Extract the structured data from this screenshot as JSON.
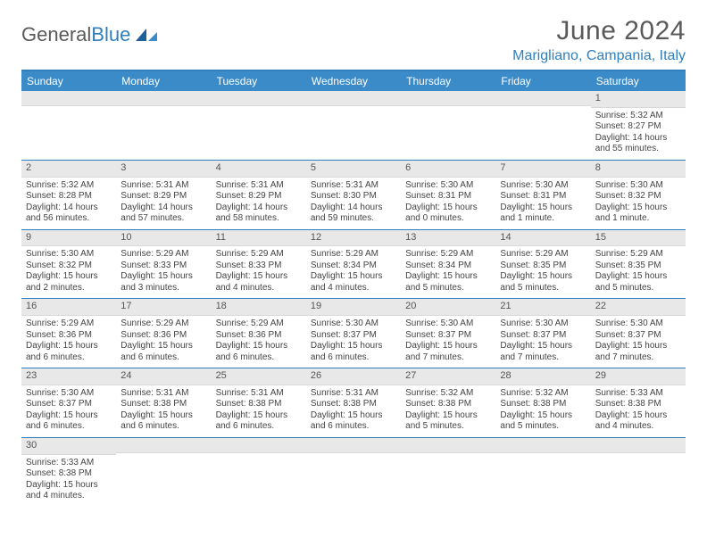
{
  "logo": {
    "text1": "General",
    "text2": "Blue"
  },
  "header": {
    "title": "June 2024",
    "location": "Marigliano, Campania, Italy"
  },
  "colors": {
    "accent": "#2f7fbf",
    "header_bg": "#3b8bc9",
    "daynum_bg": "#e8e8e8",
    "text": "#444444"
  },
  "day_labels": [
    "Sunday",
    "Monday",
    "Tuesday",
    "Wednesday",
    "Thursday",
    "Friday",
    "Saturday"
  ],
  "weeks": [
    [
      null,
      null,
      null,
      null,
      null,
      null,
      {
        "n": "1",
        "sunrise": "Sunrise: 5:32 AM",
        "sunset": "Sunset: 8:27 PM",
        "daylight": "Daylight: 14 hours and 55 minutes."
      }
    ],
    [
      {
        "n": "2",
        "sunrise": "Sunrise: 5:32 AM",
        "sunset": "Sunset: 8:28 PM",
        "daylight": "Daylight: 14 hours and 56 minutes."
      },
      {
        "n": "3",
        "sunrise": "Sunrise: 5:31 AM",
        "sunset": "Sunset: 8:29 PM",
        "daylight": "Daylight: 14 hours and 57 minutes."
      },
      {
        "n": "4",
        "sunrise": "Sunrise: 5:31 AM",
        "sunset": "Sunset: 8:29 PM",
        "daylight": "Daylight: 14 hours and 58 minutes."
      },
      {
        "n": "5",
        "sunrise": "Sunrise: 5:31 AM",
        "sunset": "Sunset: 8:30 PM",
        "daylight": "Daylight: 14 hours and 59 minutes."
      },
      {
        "n": "6",
        "sunrise": "Sunrise: 5:30 AM",
        "sunset": "Sunset: 8:31 PM",
        "daylight": "Daylight: 15 hours and 0 minutes."
      },
      {
        "n": "7",
        "sunrise": "Sunrise: 5:30 AM",
        "sunset": "Sunset: 8:31 PM",
        "daylight": "Daylight: 15 hours and 1 minute."
      },
      {
        "n": "8",
        "sunrise": "Sunrise: 5:30 AM",
        "sunset": "Sunset: 8:32 PM",
        "daylight": "Daylight: 15 hours and 1 minute."
      }
    ],
    [
      {
        "n": "9",
        "sunrise": "Sunrise: 5:30 AM",
        "sunset": "Sunset: 8:32 PM",
        "daylight": "Daylight: 15 hours and 2 minutes."
      },
      {
        "n": "10",
        "sunrise": "Sunrise: 5:29 AM",
        "sunset": "Sunset: 8:33 PM",
        "daylight": "Daylight: 15 hours and 3 minutes."
      },
      {
        "n": "11",
        "sunrise": "Sunrise: 5:29 AM",
        "sunset": "Sunset: 8:33 PM",
        "daylight": "Daylight: 15 hours and 4 minutes."
      },
      {
        "n": "12",
        "sunrise": "Sunrise: 5:29 AM",
        "sunset": "Sunset: 8:34 PM",
        "daylight": "Daylight: 15 hours and 4 minutes."
      },
      {
        "n": "13",
        "sunrise": "Sunrise: 5:29 AM",
        "sunset": "Sunset: 8:34 PM",
        "daylight": "Daylight: 15 hours and 5 minutes."
      },
      {
        "n": "14",
        "sunrise": "Sunrise: 5:29 AM",
        "sunset": "Sunset: 8:35 PM",
        "daylight": "Daylight: 15 hours and 5 minutes."
      },
      {
        "n": "15",
        "sunrise": "Sunrise: 5:29 AM",
        "sunset": "Sunset: 8:35 PM",
        "daylight": "Daylight: 15 hours and 5 minutes."
      }
    ],
    [
      {
        "n": "16",
        "sunrise": "Sunrise: 5:29 AM",
        "sunset": "Sunset: 8:36 PM",
        "daylight": "Daylight: 15 hours and 6 minutes."
      },
      {
        "n": "17",
        "sunrise": "Sunrise: 5:29 AM",
        "sunset": "Sunset: 8:36 PM",
        "daylight": "Daylight: 15 hours and 6 minutes."
      },
      {
        "n": "18",
        "sunrise": "Sunrise: 5:29 AM",
        "sunset": "Sunset: 8:36 PM",
        "daylight": "Daylight: 15 hours and 6 minutes."
      },
      {
        "n": "19",
        "sunrise": "Sunrise: 5:30 AM",
        "sunset": "Sunset: 8:37 PM",
        "daylight": "Daylight: 15 hours and 6 minutes."
      },
      {
        "n": "20",
        "sunrise": "Sunrise: 5:30 AM",
        "sunset": "Sunset: 8:37 PM",
        "daylight": "Daylight: 15 hours and 7 minutes."
      },
      {
        "n": "21",
        "sunrise": "Sunrise: 5:30 AM",
        "sunset": "Sunset: 8:37 PM",
        "daylight": "Daylight: 15 hours and 7 minutes."
      },
      {
        "n": "22",
        "sunrise": "Sunrise: 5:30 AM",
        "sunset": "Sunset: 8:37 PM",
        "daylight": "Daylight: 15 hours and 7 minutes."
      }
    ],
    [
      {
        "n": "23",
        "sunrise": "Sunrise: 5:30 AM",
        "sunset": "Sunset: 8:37 PM",
        "daylight": "Daylight: 15 hours and 6 minutes."
      },
      {
        "n": "24",
        "sunrise": "Sunrise: 5:31 AM",
        "sunset": "Sunset: 8:38 PM",
        "daylight": "Daylight: 15 hours and 6 minutes."
      },
      {
        "n": "25",
        "sunrise": "Sunrise: 5:31 AM",
        "sunset": "Sunset: 8:38 PM",
        "daylight": "Daylight: 15 hours and 6 minutes."
      },
      {
        "n": "26",
        "sunrise": "Sunrise: 5:31 AM",
        "sunset": "Sunset: 8:38 PM",
        "daylight": "Daylight: 15 hours and 6 minutes."
      },
      {
        "n": "27",
        "sunrise": "Sunrise: 5:32 AM",
        "sunset": "Sunset: 8:38 PM",
        "daylight": "Daylight: 15 hours and 5 minutes."
      },
      {
        "n": "28",
        "sunrise": "Sunrise: 5:32 AM",
        "sunset": "Sunset: 8:38 PM",
        "daylight": "Daylight: 15 hours and 5 minutes."
      },
      {
        "n": "29",
        "sunrise": "Sunrise: 5:33 AM",
        "sunset": "Sunset: 8:38 PM",
        "daylight": "Daylight: 15 hours and 4 minutes."
      }
    ],
    [
      {
        "n": "30",
        "sunrise": "Sunrise: 5:33 AM",
        "sunset": "Sunset: 8:38 PM",
        "daylight": "Daylight: 15 hours and 4 minutes."
      },
      null,
      null,
      null,
      null,
      null,
      null
    ]
  ]
}
